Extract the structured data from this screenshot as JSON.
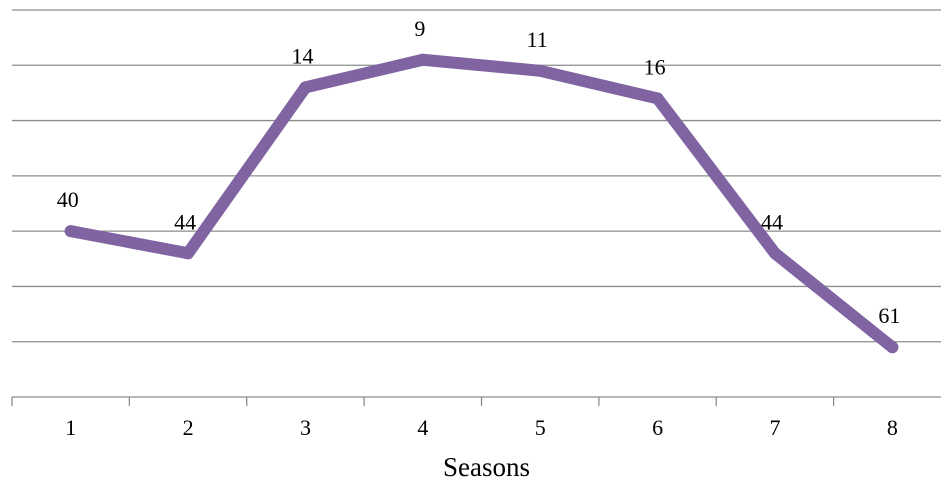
{
  "chart_data": {
    "type": "line",
    "title": "",
    "xlabel": "Seasons",
    "ylabel": "",
    "categories": [
      "1",
      "2",
      "3",
      "4",
      "5",
      "6",
      "7",
      "8"
    ],
    "series": [
      {
        "values": [
          40,
          44,
          14,
          9,
          11,
          16,
          44,
          61
        ],
        "color": "#8064a2"
      }
    ],
    "data_labels": [
      "40",
      "44",
      "14",
      "9",
      "11",
      "16",
      "44",
      "61"
    ],
    "y_axis": {
      "reversed": true,
      "gridlines": 7,
      "tick_labels_shown": false
    },
    "ylim": [
      0,
      70
    ],
    "grid": true,
    "legend": "none"
  }
}
